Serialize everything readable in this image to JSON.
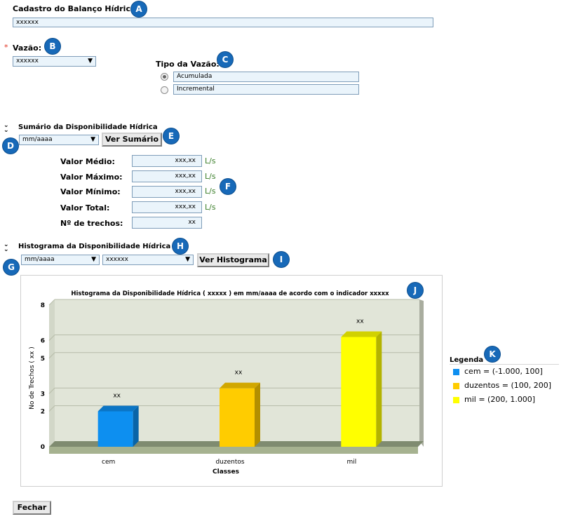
{
  "cadastro": {
    "label": "Cadastro do Balanço Hídrico:",
    "value": "xxxxxx"
  },
  "vazao": {
    "required_mark": "*",
    "label": "Vazão:",
    "select_value": "xxxxxx"
  },
  "tipo_vazao": {
    "label": "Tipo da Vazão:",
    "options": [
      {
        "label": "Acumulada",
        "selected": true
      },
      {
        "label": "Incremental",
        "selected": false
      }
    ]
  },
  "sumario": {
    "title": "Sumário da Disponibilidade Hídrica",
    "date_select": "mm/aaaa",
    "button": "Ver Sumário",
    "rows": [
      {
        "label": "Valor Médio:",
        "value": "xxx,xx",
        "unit": "L/s"
      },
      {
        "label": "Valor Máximo:",
        "value": "xxx,xx",
        "unit": "L/s"
      },
      {
        "label": "Valor Mínimo:",
        "value": "xxx,xx",
        "unit": "L/s"
      },
      {
        "label": "Valor Total:",
        "value": "xxx,xx",
        "unit": "L/s"
      },
      {
        "label": "Nº de trechos:",
        "value": "xx",
        "unit": ""
      }
    ]
  },
  "histograma": {
    "title": "Histograma da Disponibilidade Hídrica",
    "date_select": "mm/aaaa",
    "indicator_select": "xxxxxx",
    "button": "Ver Histograma"
  },
  "badges": [
    "A",
    "B",
    "C",
    "D",
    "E",
    "F",
    "G",
    "H",
    "I",
    "J",
    "K"
  ],
  "chart_data": {
    "type": "bar",
    "title": "Histograma da Disponibilidade Hídrica ( xxxxx ) em mm/aaaa de acordo com o indicador xxxxx",
    "xlabel": "Classes",
    "ylabel": "No de Trechos ( xx )",
    "categories": [
      "cem",
      "duzentos",
      "mil"
    ],
    "values": [
      2,
      3.3,
      6.2
    ],
    "data_labels": [
      "xx",
      "xx",
      "xx"
    ],
    "colors": [
      "#0d8ff0",
      "#ffcc00",
      "#ffff00"
    ],
    "ylim": [
      0,
      8
    ],
    "yticks": [
      0,
      2,
      3,
      5,
      6,
      8
    ],
    "grid": true
  },
  "legend": {
    "title": "Legenda",
    "items": [
      {
        "label": "cem = (-1.000, 100]",
        "color": "#0d8ff0"
      },
      {
        "label": "duzentos = (100, 200]",
        "color": "#ffcc00"
      },
      {
        "label": "mil = (200, 1.000]",
        "color": "#ffff00"
      }
    ]
  },
  "footer": {
    "close_button": "Fechar"
  }
}
